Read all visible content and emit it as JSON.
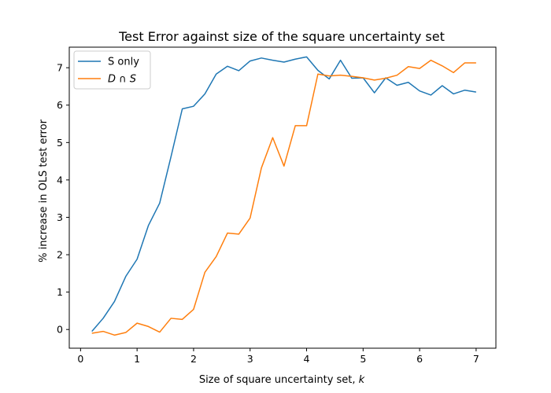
{
  "chart_data": {
    "type": "line",
    "title": "Test Error against size of the square uncertainty set",
    "xlabel": "Size of square uncertainty set, ",
    "xlabel_var": "k",
    "ylabel": "% increase in OLS test error",
    "xlim": [
      -0.2,
      7.35
    ],
    "ylim": [
      -0.5,
      7.55
    ],
    "x_ticks": [
      0,
      1,
      2,
      3,
      4,
      5,
      6,
      7
    ],
    "y_ticks": [
      0,
      1,
      2,
      3,
      4,
      5,
      6,
      7
    ],
    "grid": false,
    "legend_position": "top-left",
    "x": [
      0.2,
      0.4,
      0.6,
      0.8,
      1.0,
      1.2,
      1.4,
      1.6,
      1.8,
      2.0,
      2.2,
      2.4,
      2.6,
      2.8,
      3.0,
      3.2,
      3.4,
      3.6,
      3.8,
      4.0,
      4.2,
      4.4,
      4.6,
      4.8,
      5.0,
      5.2,
      5.4,
      5.6,
      5.8,
      6.0,
      6.2,
      6.4,
      6.6,
      6.8,
      7.0
    ],
    "series": [
      {
        "name": "S only",
        "color": "#1f77b4",
        "values": [
          -0.05,
          0.3,
          0.75,
          1.42,
          1.88,
          2.78,
          3.38,
          4.62,
          5.9,
          5.97,
          6.3,
          6.83,
          7.04,
          6.92,
          7.18,
          7.26,
          7.2,
          7.15,
          7.23,
          7.29,
          6.93,
          6.7,
          7.2,
          6.72,
          6.73,
          6.33,
          6.73,
          6.53,
          6.61,
          6.38,
          6.27,
          6.52,
          6.3,
          6.4,
          6.35
        ]
      },
      {
        "name": "D ∩ S",
        "name_parts": [
          "D",
          " ∩ ",
          "S"
        ],
        "color": "#ff7f0e",
        "values": [
          -0.1,
          -0.05,
          -0.15,
          -0.08,
          0.17,
          0.08,
          -0.07,
          0.3,
          0.27,
          0.54,
          1.53,
          1.95,
          2.58,
          2.55,
          2.98,
          4.32,
          5.13,
          4.37,
          5.45,
          5.45,
          6.83,
          6.78,
          6.8,
          6.77,
          6.73,
          6.67,
          6.72,
          6.8,
          7.03,
          6.98,
          7.2,
          7.05,
          6.87,
          7.13,
          7.13
        ]
      }
    ]
  }
}
